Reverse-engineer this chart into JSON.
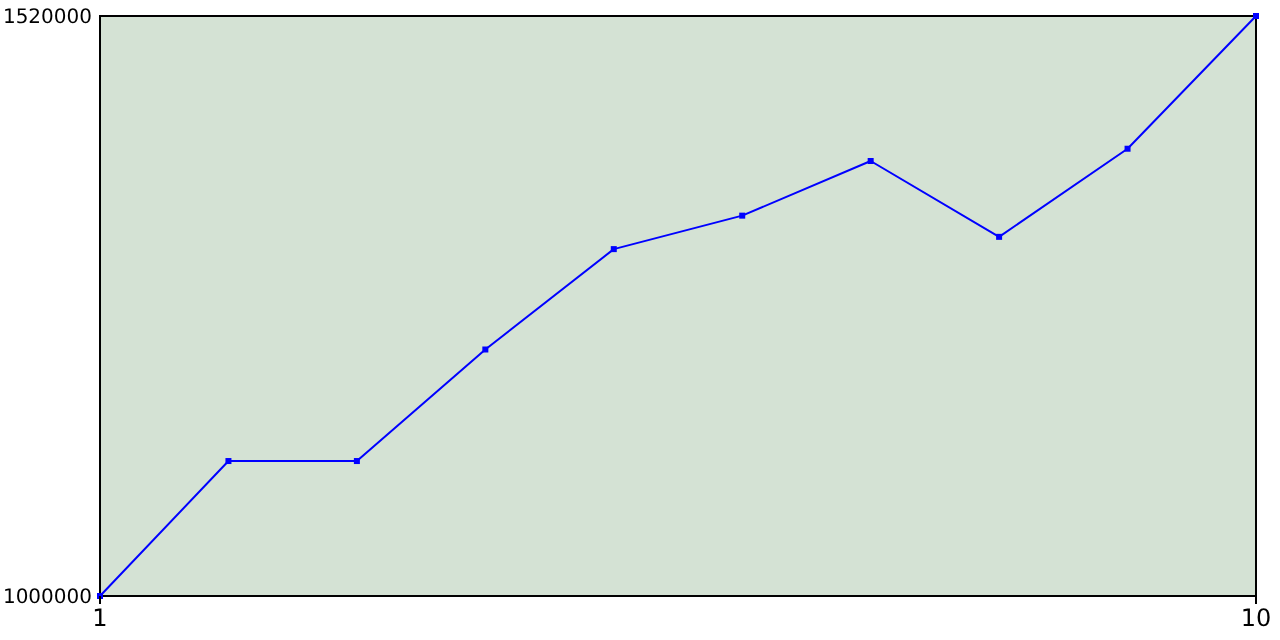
{
  "chart_data": {
    "type": "line",
    "x": [
      1,
      2,
      3,
      4,
      5,
      6,
      7,
      8,
      9,
      10
    ],
    "series": [
      {
        "color": "#0000ff",
        "values": [
          1000000,
          1121000,
          1121000,
          1221000,
          1311000,
          1341000,
          1390000,
          1322000,
          1401000,
          1520000
        ]
      }
    ],
    "xlim": [
      1,
      10
    ],
    "xticks": [
      1,
      10
    ],
    "ylim": [
      1000000,
      1520000
    ],
    "yticks": [
      1000000,
      1520000
    ],
    "grid": false,
    "marker": "square",
    "line_style": "solid"
  }
}
